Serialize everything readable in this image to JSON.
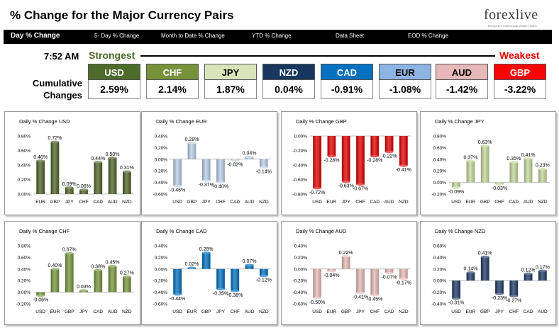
{
  "header": {
    "title": "% Change for the Major Currency Pairs",
    "logo_text": "forexlive",
    "logo_subtitle": "Everyone's Commercial Wisdom Index"
  },
  "nav": {
    "items": [
      "Day % Change",
      "5- Day % Change",
      "Month to Date % Change",
      "YTD % Change",
      "Data Sheet",
      "EOD % Change"
    ]
  },
  "summary": {
    "time": "7:52 AM",
    "strongest_label": "Strongest",
    "weakest_label": "Weakest",
    "cumulative_label_line1": "Cumulative",
    "cumulative_label_line2": "Changes",
    "currencies": [
      {
        "code": "USD",
        "value": "2.59%",
        "bg": "#4d6b2a",
        "fg": "#ffffff"
      },
      {
        "code": "CHF",
        "value": "2.14%",
        "bg": "#76933c",
        "fg": "#ffffff"
      },
      {
        "code": "JPY",
        "value": "1.87%",
        "bg": "#d8e4bc",
        "fg": "#000000"
      },
      {
        "code": "NZD",
        "value": "0.04%",
        "bg": "#17375e",
        "fg": "#ffffff"
      },
      {
        "code": "CAD",
        "value": "-0.91%",
        "bg": "#0070c0",
        "fg": "#ffffff"
      },
      {
        "code": "EUR",
        "value": "-1.08%",
        "bg": "#8db4e2",
        "fg": "#000000"
      },
      {
        "code": "AUD",
        "value": "-1.42%",
        "bg": "#e6b9b8",
        "fg": "#000000"
      },
      {
        "code": "GBP",
        "value": "-3.22%",
        "bg": "#ff0000",
        "fg": "#ffffff"
      }
    ]
  },
  "chart_data": [
    {
      "type": "bar",
      "title": "Daily % Change USD",
      "categories": [
        "EUR",
        "GBP",
        "JPY",
        "CHF",
        "CAD",
        "AUD",
        "NZD"
      ],
      "values": [
        0.46,
        0.72,
        0.09,
        0.06,
        0.44,
        0.5,
        0.31
      ],
      "labels": [
        "0.46%",
        "0.72%",
        "0.09%",
        "0.06%",
        "0.44%",
        "0.50%",
        "0.31%"
      ],
      "ylim": [
        0,
        0.8
      ],
      "ticks": [
        0,
        0.2,
        0.4,
        0.6,
        0.8
      ],
      "tick_labels": [
        "0.00%",
        "0.20%",
        "0.40%",
        "0.60%",
        "0.80%"
      ],
      "color": "#4f6228"
    },
    {
      "type": "bar",
      "title": "Daily % Change EUR",
      "categories": [
        "USD",
        "GBP",
        "JPY",
        "CHF",
        "CAD",
        "AUD",
        "NZD"
      ],
      "values": [
        -0.46,
        0.28,
        -0.37,
        -0.4,
        -0.02,
        0.04,
        -0.14
      ],
      "labels": [
        "-0.46%",
        "0.28%",
        "-0.37%",
        "-0.40%",
        "-0.02%",
        "0.04%",
        "-0.14%"
      ],
      "ylim": [
        -0.6,
        0.4
      ],
      "ticks": [
        -0.6,
        -0.4,
        -0.2,
        0,
        0.2,
        0.4
      ],
      "tick_labels": [
        "-0.60%",
        "-0.40%",
        "-0.20%",
        "0.00%",
        "0.20%",
        "0.40%"
      ],
      "color": "#b9cde5"
    },
    {
      "type": "bar",
      "title": "Daily % Change GBP",
      "categories": [
        "USD",
        "EUR",
        "JPY",
        "CHF",
        "CAD",
        "AUD",
        "NZD"
      ],
      "values": [
        -0.72,
        -0.28,
        -0.63,
        -0.67,
        -0.28,
        -0.22,
        -0.41
      ],
      "labels": [
        "-0.72%",
        "-0.28%",
        "-0.63%",
        "-0.67%",
        "-0.28%",
        "-0.22%",
        "-0.41%"
      ],
      "ylim": [
        -0.8,
        0
      ],
      "ticks": [
        -0.8,
        -0.6,
        -0.4,
        -0.2,
        0
      ],
      "tick_labels": [
        "-0.80%",
        "-0.60%",
        "-0.40%",
        "-0.20%",
        "0.00%"
      ],
      "color": "#e00000"
    },
    {
      "type": "bar",
      "title": "Daily % Change JPY",
      "categories": [
        "USD",
        "EUR",
        "GBP",
        "CHF",
        "CAD",
        "AUD",
        "NZD"
      ],
      "values": [
        -0.09,
        0.37,
        0.63,
        -0.03,
        0.35,
        0.41,
        0.23
      ],
      "labels": [
        "-0.09%",
        "0.37%",
        "0.63%",
        "-0.03%",
        "0.35%",
        "0.41%",
        "0.23%"
      ],
      "ylim": [
        -0.2,
        0.8
      ],
      "ticks": [
        -0.2,
        0,
        0.2,
        0.4,
        0.6,
        0.8
      ],
      "tick_labels": [
        "-0.20%",
        "0.00%",
        "0.20%",
        "0.40%",
        "0.60%",
        "0.80%"
      ],
      "color": "#c4d79b"
    },
    {
      "type": "bar",
      "title": "Daily % Change CHF",
      "categories": [
        "USD",
        "EUR",
        "GBP",
        "JPY",
        "CAD",
        "AUD",
        "NZD"
      ],
      "values": [
        -0.06,
        0.4,
        0.67,
        0.03,
        0.38,
        0.45,
        0.27
      ],
      "labels": [
        "-0.06%",
        "0.40%",
        "0.67%",
        "0.03%",
        "0.38%",
        "0.45%",
        "0.27%"
      ],
      "ylim": [
        -0.2,
        0.8
      ],
      "ticks": [
        -0.2,
        0,
        0.2,
        0.4,
        0.6,
        0.8
      ],
      "tick_labels": [
        "-0.20%",
        "0.00%",
        "0.20%",
        "0.40%",
        "0.60%",
        "0.80%"
      ],
      "color": "#77933c"
    },
    {
      "type": "bar",
      "title": "Daily % Change CAD",
      "categories": [
        "USD",
        "EUR",
        "GBP",
        "JPY",
        "CHF",
        "AUD",
        "NZD"
      ],
      "values": [
        -0.44,
        0.02,
        0.28,
        -0.35,
        -0.38,
        0.07,
        -0.12
      ],
      "labels": [
        "-0.44%",
        "0.02%",
        "0.28%",
        "-0.35%",
        "-0.38%",
        "0.07%",
        "-0.12%"
      ],
      "ylim": [
        -0.6,
        0.4
      ],
      "ticks": [
        -0.6,
        -0.4,
        -0.2,
        0,
        0.2,
        0.4
      ],
      "tick_labels": [
        "-0.60%",
        "-0.40%",
        "-0.20%",
        "0.00%",
        "0.20%",
        "0.40%"
      ],
      "color": "#0070c0"
    },
    {
      "type": "bar",
      "title": "Daily % Change AUD",
      "categories": [
        "USD",
        "EUR",
        "GBP",
        "JPY",
        "CHF",
        "CAD",
        "NZD"
      ],
      "values": [
        -0.5,
        -0.04,
        0.22,
        -0.41,
        -0.45,
        -0.07,
        -0.17
      ],
      "labels": [
        "-0.50%",
        "-0.04%",
        "0.22%",
        "-0.41%",
        "-0.45%",
        "-0.07%",
        "-0.17%"
      ],
      "ylim": [
        -0.6,
        0.4
      ],
      "ticks": [
        -0.6,
        -0.4,
        -0.2,
        0,
        0.2,
        0.4
      ],
      "tick_labels": [
        "-0.60%",
        "-0.40%",
        "-0.20%",
        "0.00%",
        "0.20%",
        "0.40%"
      ],
      "color": "#e6b9b8"
    },
    {
      "type": "bar",
      "title": "Daily % Change NZD",
      "categories": [
        "USD",
        "EUR",
        "GBP",
        "JPY",
        "CHF",
        "CAD",
        "AUD"
      ],
      "values": [
        -0.31,
        0.14,
        0.41,
        -0.23,
        -0.27,
        0.12,
        0.17
      ],
      "labels": [
        "-0.31%",
        "0.14%",
        "0.41%",
        "-0.23%",
        "-0.27%",
        "0.12%",
        "0.17%"
      ],
      "ylim": [
        -0.4,
        0.6
      ],
      "ticks": [
        -0.4,
        -0.2,
        0,
        0.2,
        0.4,
        0.6
      ],
      "tick_labels": [
        "-0.40%",
        "-0.20%",
        "0.00%",
        "0.20%",
        "0.40%",
        "0.60%"
      ],
      "color": "#1f3864"
    }
  ]
}
